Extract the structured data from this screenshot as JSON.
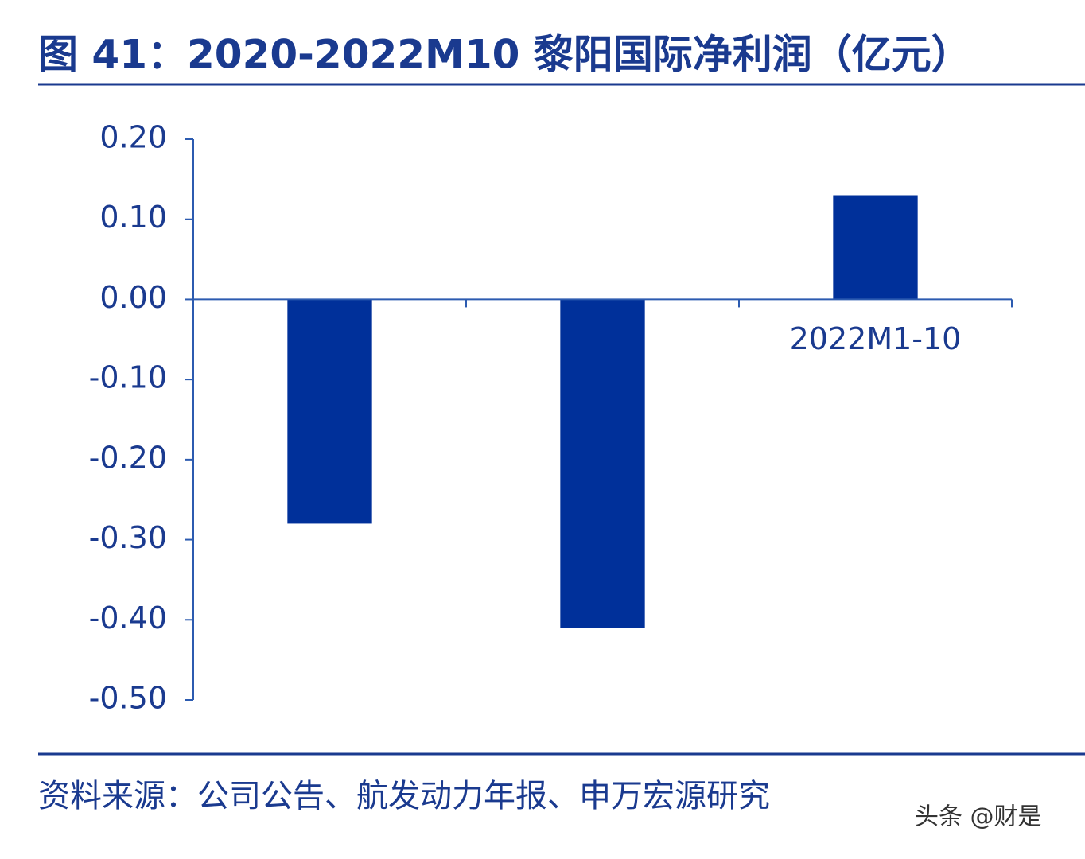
{
  "chart_data": {
    "type": "bar",
    "title": "图 41：2020-2022M10 黎阳国际净利润（亿元）",
    "categories": [
      null,
      null,
      "2022M1-10"
    ],
    "values": [
      -0.28,
      -0.41,
      0.13
    ],
    "color": "#00309a",
    "ylim": [
      -0.5,
      0.2
    ],
    "yticks": [
      {
        "value": 0.2,
        "label": "0.20"
      },
      {
        "value": 0.1,
        "label": "0.10"
      },
      {
        "value": 0,
        "label": "0.00"
      },
      {
        "value": -0.1,
        "label": "-0.10"
      },
      {
        "value": -0.2,
        "label": "-0.20"
      },
      {
        "value": -0.3,
        "label": "-0.30"
      },
      {
        "value": -0.4,
        "label": "-0.40"
      },
      {
        "value": -0.5,
        "label": "-0.50"
      }
    ],
    "source": "资料来源：公司公告、航发动力年报、申万宏源研究",
    "watermark": "头条 @财是"
  }
}
